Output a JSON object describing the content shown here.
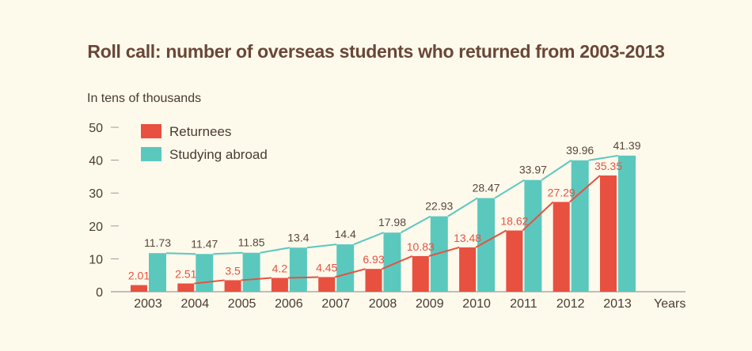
{
  "chart_data": {
    "type": "bar",
    "title": "Roll call: number of overseas students who returned from 2003-2013",
    "ylabel": "In tens of thousands",
    "xlabel": "Years",
    "ylim": [
      0,
      50
    ],
    "yticks": [
      0,
      10,
      20,
      30,
      40,
      50
    ],
    "grid": false,
    "legend": "top-left",
    "categories": [
      "2003",
      "2004",
      "2005",
      "2006",
      "2007",
      "2008",
      "2009",
      "2010",
      "2011",
      "2012",
      "2013"
    ],
    "series": [
      {
        "name": "Returnees",
        "color": "#e85040",
        "values": [
          2.01,
          2.51,
          3.5,
          4.2,
          4.45,
          6.93,
          10.83,
          13.48,
          18.62,
          27.29,
          35.35
        ]
      },
      {
        "name": "Studying abroad",
        "color": "#5bc8be",
        "values": [
          11.73,
          11.47,
          11.85,
          13.4,
          14.4,
          17.98,
          22.93,
          28.47,
          33.97,
          39.96,
          41.39
        ]
      }
    ]
  }
}
